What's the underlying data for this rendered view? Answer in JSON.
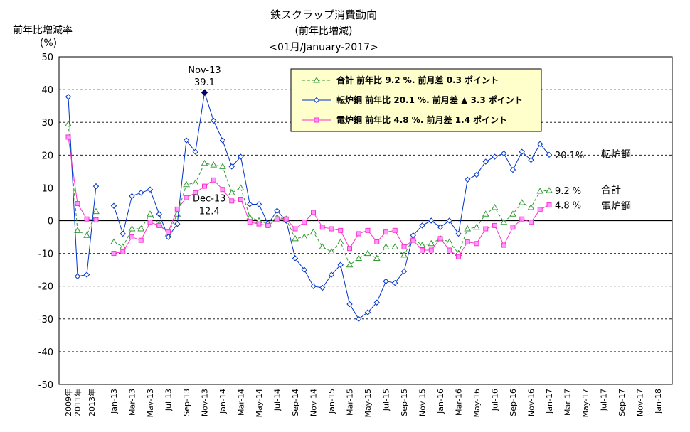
{
  "chart_data": {
    "type": "line",
    "title": "鉄スクラップ消費動向",
    "subtitle": "(前年比増減)",
    "subtitle2": "<01月/January-2017>",
    "ylabel": "前年比増減率",
    "yunit": "(%)",
    "ylim": [
      -50,
      50
    ],
    "yticks": [
      50,
      40,
      30,
      20,
      10,
      0,
      -10,
      -20,
      -30,
      -40,
      -50
    ],
    "grid": true,
    "legend_position": "top-right",
    "x_labels": [
      "2009年",
      "2011年",
      "2013年",
      "Jan-13",
      "Mar-13",
      "May-13",
      "Jul-13",
      "Sep-13",
      "Nov-13",
      "Jan-14",
      "Mar-14",
      "May-14",
      "Jul-14",
      "Sep-14",
      "Nov-14",
      "Jan-15",
      "Mar-15",
      "May-15",
      "Jul-15",
      "Sep-15",
      "Nov-15",
      "Jan-16",
      "Mar-16",
      "May-16",
      "Jul-16",
      "Sep-16",
      "Nov-16",
      "Jan-17",
      "Mar-17",
      "May-17",
      "Jul-17",
      "Sep-17",
      "Nov-17",
      "Jan-18"
    ],
    "series": [
      {
        "name": "合計",
        "legend_text": "合計 前年比 9.2 %.  前月差 0.3 ポイント",
        "end_label": "9.2 %",
        "series_label": "合計",
        "color": "#339933",
        "marker": "triangle",
        "dashed": true,
        "annual": [
          29.5,
          -3,
          -4.5,
          2.8
        ],
        "monthly": [
          -6.5,
          -8,
          -2.5,
          -2.5,
          2,
          -1,
          -4,
          2,
          11,
          11.5,
          17.5,
          17,
          16.5,
          8.5,
          10,
          1,
          0,
          -1,
          1,
          0.5,
          -5.5,
          -5,
          -3.5,
          -8,
          -9.5,
          -6.5,
          -13.5,
          -11.5,
          -10,
          -11.5,
          -8,
          -8,
          -10.5,
          -5.5,
          -7.5,
          -7,
          -5.5,
          -6.5,
          -10,
          -2.5,
          -2,
          2,
          4,
          -0.5,
          2,
          5.5,
          4,
          9,
          9.2
        ]
      },
      {
        "name": "転炉鋼",
        "legend_text": "転炉鋼 前年比 20.1 %.  前月差 ▲ 3.3 ポイント",
        "end_label": "20.1%",
        "series_label": "転炉鋼",
        "color": "#0033cc",
        "marker": "diamond",
        "dashed": false,
        "annual": [
          37.8,
          -17,
          -16.5,
          10.5
        ],
        "monthly": [
          4.5,
          -4,
          7.5,
          8.5,
          9.5,
          2,
          -5,
          -1,
          24.5,
          21,
          39.1,
          30.5,
          24.5,
          16.5,
          19.5,
          5,
          5,
          -1,
          3,
          0,
          -11.5,
          -15,
          -20,
          -20.5,
          -16.5,
          -13.5,
          -25.5,
          -30,
          -28,
          -25,
          -18.5,
          -19,
          -15.5,
          -4.5,
          -1.5,
          0,
          -2,
          0,
          -4,
          12.5,
          14,
          18,
          19.5,
          20.5,
          15.5,
          21,
          18.5,
          23.4,
          20.1
        ]
      },
      {
        "name": "電炉鋼",
        "legend_text": "電炉鋼 前年比 4.8 %.  前月差 1.4 ポイント",
        "end_label": "4.8 %",
        "series_label": "電炉鋼",
        "color": "#ff33cc",
        "marker": "square",
        "dashed": false,
        "annual": [
          25.5,
          5.2,
          0.5,
          0.2
        ],
        "monthly": [
          -10,
          -9.5,
          -5,
          -6,
          -0.5,
          -1.5,
          -3.5,
          3.5,
          7,
          8.5,
          10.5,
          12.4,
          9.5,
          6,
          6.5,
          -0.5,
          -1,
          -1.5,
          0.5,
          0.5,
          -2.5,
          -0.5,
          2.5,
          -2,
          -2.5,
          -3,
          -8.5,
          -4,
          -3,
          -6.5,
          -3.5,
          -3,
          -8,
          -6,
          -9,
          -9,
          -5.5,
          -9,
          -11,
          -6.5,
          -7,
          -2.5,
          -1.5,
          -7.5,
          -2,
          0.5,
          -0.5,
          3.4,
          4.8
        ]
      }
    ],
    "annotations": [
      {
        "id": "peak",
        "label": "Nov-13",
        "value_text": "39.1",
        "series": 1,
        "month_index": 10
      },
      {
        "id": "dec13",
        "label": "Dec-13",
        "value_text": "12.4",
        "series": 2,
        "month_index": 11
      }
    ]
  }
}
